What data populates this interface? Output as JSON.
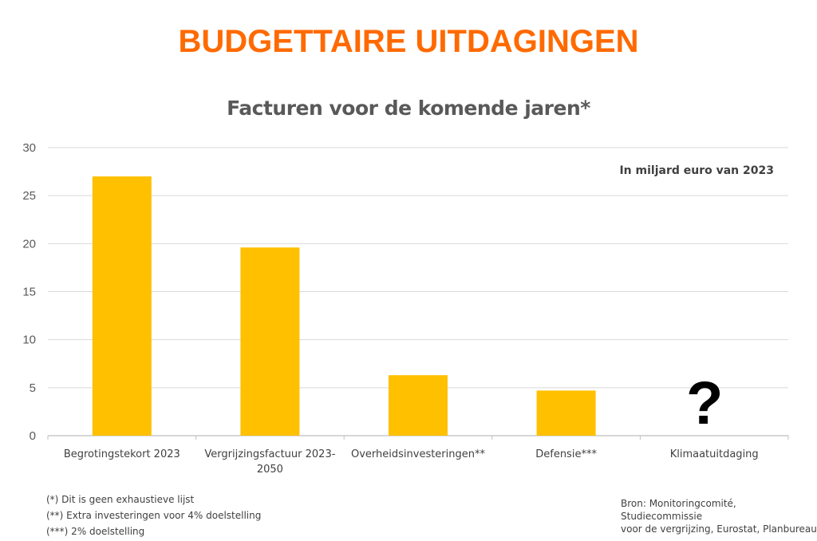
{
  "title": "BUDGETTAIRE UITDAGINGEN",
  "chart_data": {
    "type": "bar",
    "title": "Facturen voor de komende jaren*",
    "annotation": "In miljard euro van 2023",
    "categories": [
      "Begrotingstekort 2023",
      "Vergrijzingsfactuur 2023-2050",
      "Overheidsinvesteringen**",
      "Defensie***",
      "Klimaatuitdaging"
    ],
    "category_lines": [
      [
        "Begrotingstekort 2023"
      ],
      [
        "Vergrijzingsfactuur 2023-",
        "2050"
      ],
      [
        "Overheidsinvesteringen**"
      ],
      [
        "Defensie***"
      ],
      [
        "Klimaatuitdaging"
      ]
    ],
    "values": [
      27.0,
      19.6,
      6.3,
      4.7,
      null
    ],
    "unknown_marker": "?",
    "ylim": [
      0,
      30
    ],
    "yticks": [
      0,
      5,
      10,
      15,
      20,
      25,
      30
    ],
    "grid": true,
    "bar_color": "#ffc000",
    "xlabel": "",
    "ylabel": ""
  },
  "footnotes": [
    "(*) Dit is geen exhaustieve lijst",
    "(**) Extra investeringen voor 4% doelstelling",
    "(***) 2% doelstelling"
  ],
  "source": [
    "Bron: Monitoringcomité, Studiecommissie",
    "voor de vergrijzing, Eurostat, Planbureau"
  ]
}
